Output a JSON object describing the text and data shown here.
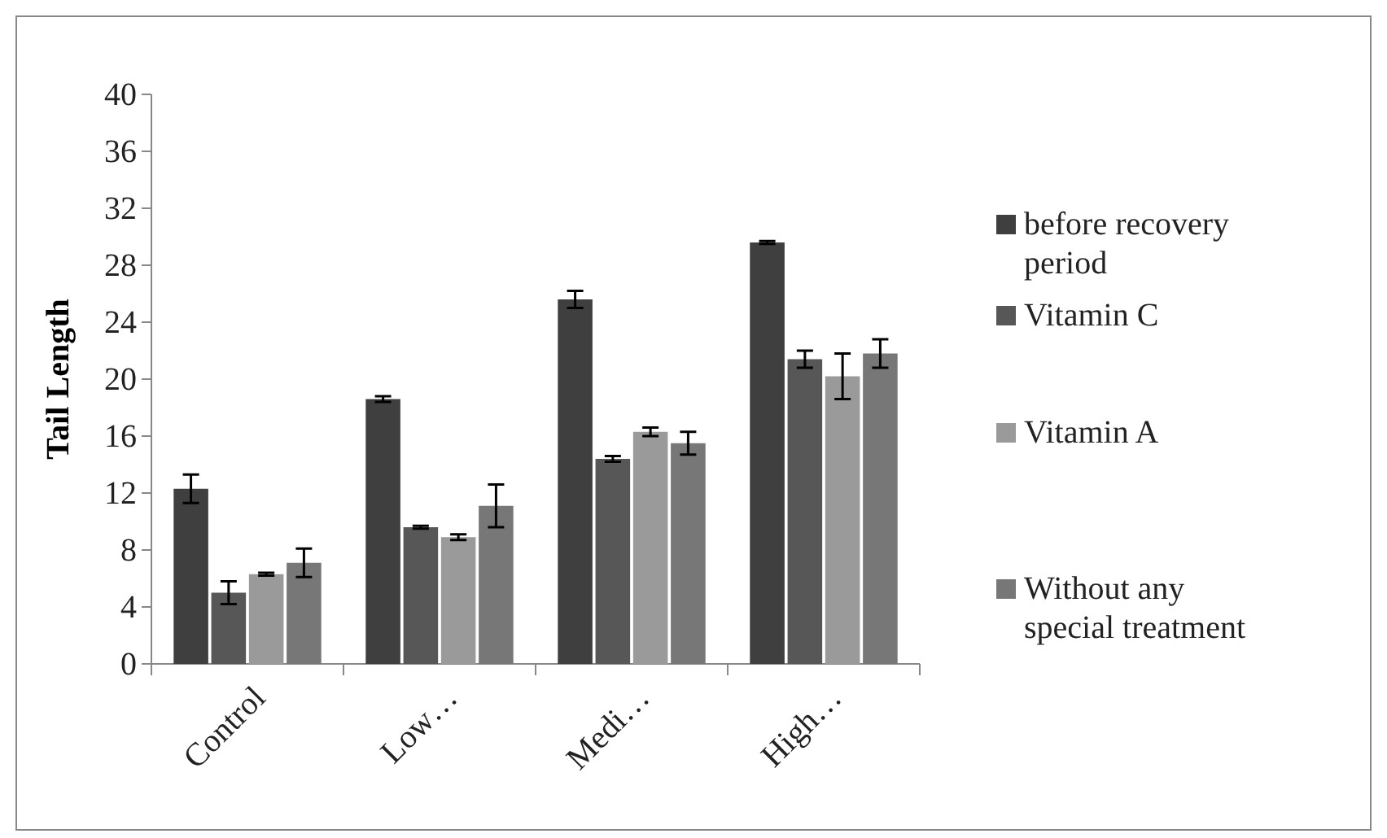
{
  "chart_data": {
    "type": "bar",
    "ylabel": "Tail Length",
    "categories": [
      "Control",
      "Low…",
      "Medi…",
      "High…"
    ],
    "series": [
      {
        "name": "before recovery period",
        "color": "#3f3f3f",
        "values": [
          12.3,
          18.6,
          25.6,
          29.6
        ],
        "errors": [
          1.0,
          0.2,
          0.6,
          0.1
        ]
      },
      {
        "name": "Vitamin C",
        "color": "#575757",
        "values": [
          5.0,
          9.6,
          14.4,
          21.4
        ],
        "errors": [
          0.8,
          0.1,
          0.2,
          0.6
        ]
      },
      {
        "name": "Vitamin A",
        "color": "#9a9a9a",
        "values": [
          6.3,
          8.9,
          16.3,
          20.2
        ],
        "errors": [
          0.1,
          0.2,
          0.3,
          1.6
        ]
      },
      {
        "name": "  Without any special treatment",
        "color": "#777777",
        "values": [
          7.1,
          11.1,
          15.5,
          21.8
        ],
        "errors": [
          1.0,
          1.5,
          0.8,
          1.0
        ]
      }
    ],
    "ylim": [
      0,
      40
    ],
    "yticks": [
      0,
      4,
      8,
      12,
      16,
      20,
      24,
      28,
      32,
      36,
      40
    ],
    "grid": false,
    "legend": "right"
  }
}
